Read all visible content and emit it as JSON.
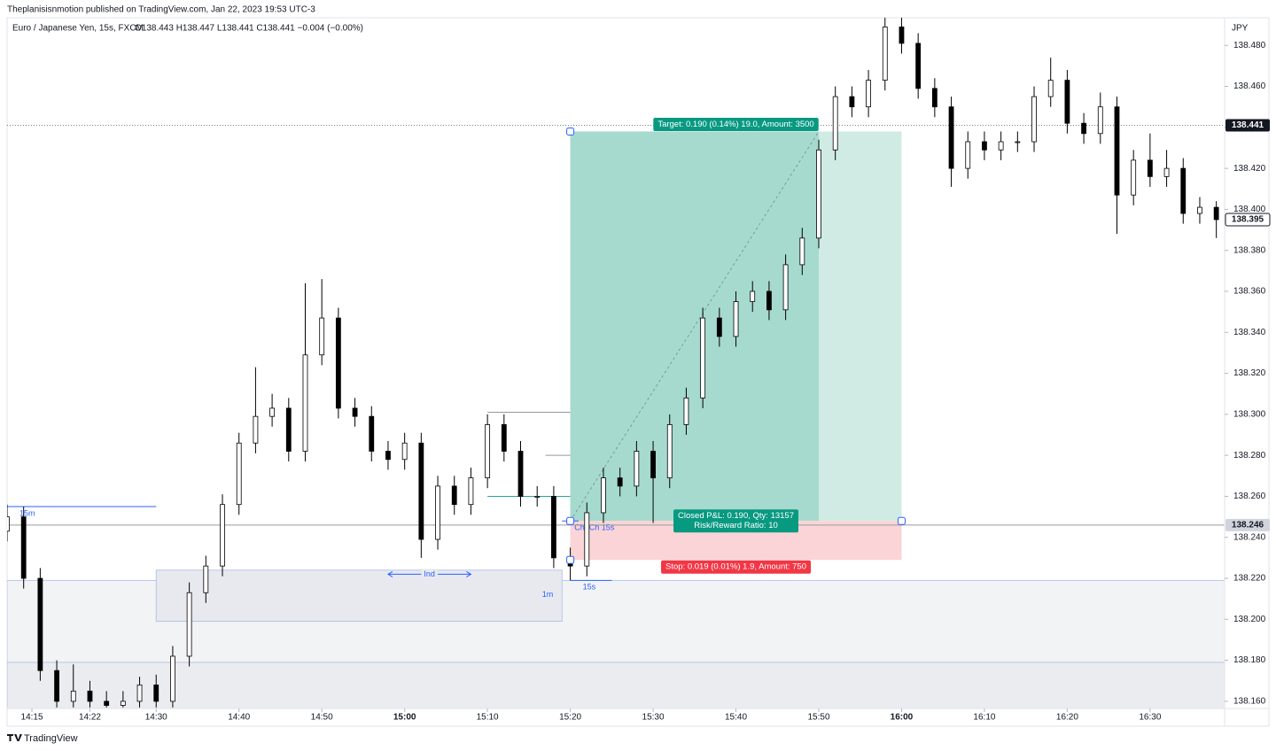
{
  "chart_data": {
    "type": "candlestick",
    "publisher": "Theplanisisnmotion published on TradingView.com, Jan 22, 2023 19:53 UTC-3",
    "title": "Euro / Japanese Yen, 15s, FXCM",
    "legend_text": "O138.443 H138.447 L138.441 C138.441 −0.004 (−0.00%)",
    "currency": "JPY",
    "brand": "TradingView",
    "up_color": "#ffffff",
    "down_color": "#000000",
    "x": [
      "14:12",
      "14:14",
      "14:16",
      "14:18",
      "14:20",
      "14:22",
      "14:24",
      "14:26",
      "14:28",
      "14:30",
      "14:32",
      "14:34",
      "14:36",
      "14:38",
      "14:40",
      "14:42",
      "14:44",
      "14:46",
      "14:48",
      "14:50",
      "14:52",
      "14:54",
      "14:56",
      "14:58",
      "15:00",
      "15:02",
      "15:04",
      "15:06",
      "15:08",
      "15:10",
      "15:12",
      "15:14",
      "15:16",
      "15:18",
      "15:20",
      "15:22",
      "15:24",
      "15:26",
      "15:28",
      "15:30",
      "15:32",
      "15:34",
      "15:36",
      "15:38",
      "15:40",
      "15:42",
      "15:44",
      "15:46",
      "15:48",
      "15:50",
      "15:52",
      "15:54",
      "15:56",
      "15:58",
      "16:00",
      "16:02",
      "16:04",
      "16:06",
      "16:08",
      "16:10",
      "16:12",
      "16:14",
      "16:16",
      "16:18",
      "16:20",
      "16:22",
      "16:24",
      "16:26",
      "16:28",
      "16:30",
      "16:32",
      "16:34",
      "16:36",
      "16:38"
    ],
    "open": [
      138.243,
      138.25,
      138.22,
      138.175,
      138.16,
      138.165,
      138.16,
      138.158,
      138.16,
      138.168,
      138.16,
      138.182,
      138.213,
      138.226,
      138.256,
      138.286,
      138.299,
      138.303,
      138.282,
      138.329,
      138.347,
      138.303,
      138.299,
      138.282,
      138.278,
      138.286,
      138.239,
      138.265,
      138.256,
      138.269,
      138.295,
      138.282,
      138.26,
      138.26,
      138.23,
      138.226,
      138.252,
      138.269,
      138.265,
      138.282,
      138.269,
      138.295,
      138.308,
      138.347,
      138.338,
      138.355,
      138.36,
      138.351,
      138.373,
      138.386,
      138.429,
      138.455,
      138.45,
      138.463,
      138.489,
      138.481,
      138.459,
      138.45,
      138.42,
      138.433,
      138.429,
      138.433,
      138.433,
      138.455,
      138.463,
      138.442,
      138.437,
      138.45,
      138.407,
      138.424,
      138.416,
      138.42,
      138.398,
      138.401
    ],
    "high": [
      138.256,
      138.255,
      138.225,
      138.18,
      138.178,
      138.17,
      138.165,
      138.165,
      138.172,
      138.173,
      138.187,
      138.218,
      138.231,
      138.261,
      138.291,
      138.323,
      138.31,
      138.308,
      138.364,
      138.366,
      138.352,
      138.308,
      138.304,
      138.287,
      138.291,
      138.291,
      138.27,
      138.27,
      138.274,
      138.3,
      138.3,
      138.287,
      138.265,
      138.265,
      138.235,
      138.257,
      138.274,
      138.274,
      138.287,
      138.287,
      138.3,
      138.313,
      138.352,
      138.352,
      138.36,
      138.365,
      138.365,
      138.378,
      138.391,
      138.434,
      138.46,
      138.46,
      138.468,
      138.494,
      138.494,
      138.486,
      138.464,
      138.455,
      138.438,
      138.438,
      138.438,
      138.438,
      138.46,
      138.474,
      138.468,
      138.447,
      138.457,
      138.455,
      138.429,
      138.437,
      138.429,
      138.425,
      138.406,
      138.404
    ],
    "low": [
      138.238,
      138.215,
      138.17,
      138.157,
      138.157,
      138.157,
      138.157,
      138.157,
      138.157,
      138.157,
      138.157,
      138.177,
      138.208,
      138.221,
      138.251,
      138.281,
      138.294,
      138.277,
      138.277,
      138.324,
      138.298,
      138.294,
      138.277,
      138.273,
      138.273,
      138.23,
      138.234,
      138.251,
      138.251,
      138.264,
      138.277,
      138.255,
      138.255,
      138.225,
      138.219,
      138.221,
      138.247,
      138.26,
      138.26,
      138.247,
      138.264,
      138.29,
      138.303,
      138.333,
      138.333,
      138.35,
      138.346,
      138.346,
      138.368,
      138.381,
      138.424,
      138.445,
      138.445,
      138.458,
      138.476,
      138.454,
      138.445,
      138.411,
      138.415,
      138.424,
      138.424,
      138.428,
      138.428,
      138.45,
      138.437,
      138.432,
      138.432,
      138.388,
      138.402,
      138.411,
      138.411,
      138.393,
      138.393,
      138.386
    ],
    "close": [
      138.25,
      138.22,
      138.175,
      138.16,
      138.165,
      138.16,
      138.158,
      138.16,
      138.168,
      138.16,
      138.182,
      138.213,
      138.226,
      138.256,
      138.286,
      138.299,
      138.303,
      138.282,
      138.329,
      138.347,
      138.303,
      138.299,
      138.282,
      138.278,
      138.286,
      138.239,
      138.265,
      138.256,
      138.269,
      138.295,
      138.282,
      138.26,
      138.26,
      138.23,
      138.226,
      138.252,
      138.269,
      138.265,
      138.282,
      138.269,
      138.295,
      138.308,
      138.347,
      138.338,
      138.355,
      138.36,
      138.351,
      138.373,
      138.386,
      138.429,
      138.455,
      138.45,
      138.463,
      138.489,
      138.481,
      138.459,
      138.45,
      138.42,
      138.433,
      138.429,
      138.433,
      138.433,
      138.455,
      138.463,
      138.442,
      138.437,
      138.45,
      138.407,
      138.424,
      138.416,
      138.42,
      138.398,
      138.401,
      138.395
    ],
    "xlim": [
      "14:12",
      "16:39"
    ],
    "xticks": [
      "14:15",
      "14:22",
      "14:30",
      "14:40",
      "14:50",
      "15:00",
      "15:10",
      "15:20",
      "15:30",
      "15:40",
      "15:50",
      "16:00",
      "16:10",
      "16:20",
      "16:30"
    ],
    "ylim": [
      138.1565,
      138.4935
    ],
    "yticks": [
      {
        "value": 138.16,
        "label": "138.160"
      },
      {
        "value": 138.18,
        "label": "138.180"
      },
      {
        "value": 138.2,
        "label": "138.200"
      },
      {
        "value": 138.22,
        "label": "138.220"
      },
      {
        "value": 138.24,
        "label": "138.240"
      },
      {
        "value": 138.26,
        "label": "138.260"
      },
      {
        "value": 138.28,
        "label": "138.280"
      },
      {
        "value": 138.3,
        "label": "138.300"
      },
      {
        "value": 138.32,
        "label": "138.320"
      },
      {
        "value": 138.34,
        "label": "138.340"
      },
      {
        "value": 138.36,
        "label": "138.360"
      },
      {
        "value": 138.38,
        "label": "138.380"
      },
      {
        "value": 138.4,
        "label": "138.400"
      },
      {
        "value": 138.42,
        "label": "138.420"
      },
      {
        "value": 138.44,
        "label": "138.440"
      },
      {
        "value": 138.46,
        "label": "138.460"
      },
      {
        "value": 138.48,
        "label": "138.480"
      }
    ],
    "last_price": {
      "value": 138.441,
      "label": "138.441"
    },
    "price_labels": [
      {
        "value": 138.395,
        "label": "138.395"
      },
      {
        "value": 138.246,
        "label": "138.246"
      }
    ],
    "zones": [
      {
        "start": "14:12",
        "end": "16:39",
        "top": 138.219,
        "bottom": 138.15,
        "color": "#f2f3f5",
        "border": "#a9bce8"
      },
      {
        "start": "14:12",
        "end": "16:39",
        "top": 138.179,
        "bottom": 138.15,
        "color": "#ebecef",
        "border": "#a9bce8"
      },
      {
        "start": "14:30",
        "end": "15:19",
        "top": 138.224,
        "bottom": 138.199,
        "color": "#e8e9ee",
        "border": "#a9bce8",
        "label": "1m"
      }
    ],
    "lines": [
      {
        "price": 138.255,
        "start": "14:12",
        "end": "14:30",
        "color": "#2962ff",
        "label": "15m"
      },
      {
        "price": 138.219,
        "start": "15:20",
        "end": "15:25",
        "color": "#2962ff",
        "label": "15s"
      },
      {
        "price": 138.301,
        "start": "15:10",
        "end": "15:20",
        "color": "#9598a1"
      },
      {
        "price": 138.28,
        "start": "15:17",
        "end": "15:20",
        "color": "#9598a1"
      },
      {
        "price": 138.26,
        "start": "15:10",
        "end": "15:20",
        "color": "#26a69a"
      },
      {
        "price": 138.248,
        "start": "15:19",
        "end": "15:21",
        "color": "#2962ff",
        "label": "ChoCh 15s"
      },
      {
        "price": 138.246,
        "start": "14:12",
        "end": "16:39",
        "color": "#9a9a9a"
      }
    ],
    "arrows": [
      {
        "price": 138.222,
        "start": "14:58",
        "end": "15:08",
        "color": "#2962ff",
        "label": "Ind"
      }
    ],
    "position": {
      "start": "15:20",
      "end": "16:00",
      "filled_until": "15:50",
      "entry": 138.248,
      "target": 138.438,
      "stop": 138.229,
      "target_label": "Target: 0.190 (0.14%) 19.0, Amount: 3500",
      "result_labels": [
        "Closed P&L: 0.190, Qty: 13157",
        "Risk/Reward Ratio: 10"
      ],
      "stop_label": "Stop: 0.019 (0.01%) 1.9, Amount: 750"
    }
  }
}
